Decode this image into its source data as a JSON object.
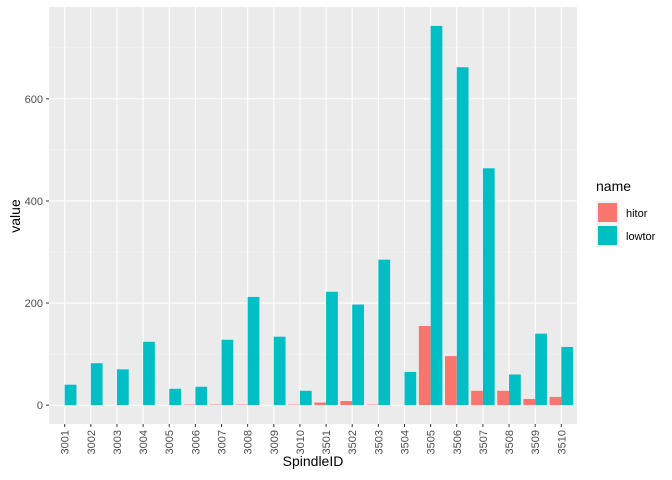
{
  "chart_data": {
    "type": "bar",
    "xlabel": "SpindleID",
    "ylabel": "value",
    "categories": [
      "3001",
      "3002",
      "3003",
      "3004",
      "3005",
      "3006",
      "3007",
      "3008",
      "3009",
      "3010",
      "3501",
      "3502",
      "3503",
      "3504",
      "3505",
      "3506",
      "3507",
      "3508",
      "3509",
      "3510"
    ],
    "series": [
      {
        "name": "hitor",
        "color": "#F8766D",
        "values": [
          0,
          0,
          0,
          0,
          0,
          1,
          1,
          1,
          0,
          1,
          5,
          8,
          1,
          0,
          155,
          96,
          28,
          28,
          12,
          16
        ]
      },
      {
        "name": "lowtor",
        "color": "#00BFC4",
        "values": [
          40,
          82,
          70,
          124,
          32,
          36,
          128,
          212,
          134,
          28,
          222,
          197,
          285,
          65,
          743,
          662,
          464,
          60,
          140,
          114
        ]
      }
    ],
    "yticks": [
      0,
      200,
      400,
      600
    ],
    "ylim": [
      -37,
      780
    ],
    "grid": true,
    "legend": {
      "title": "name",
      "position": "right"
    }
  }
}
